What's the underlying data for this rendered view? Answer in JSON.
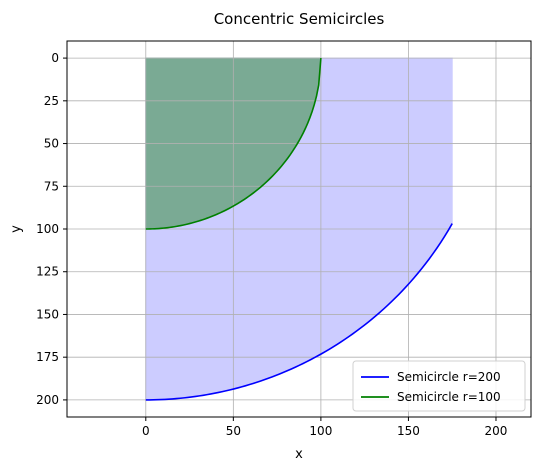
{
  "chart_data": {
    "type": "area",
    "title": "Concentric Semicircles",
    "xlabel": "x",
    "ylabel": "y",
    "xlim": [
      -45,
      220
    ],
    "ylim": [
      210,
      -10
    ],
    "y_inverted": true,
    "xticks": [
      0,
      50,
      100,
      150,
      200
    ],
    "yticks": [
      0,
      25,
      50,
      75,
      100,
      125,
      150,
      175,
      200
    ],
    "grid": true,
    "legend_position": "lower-right",
    "series": [
      {
        "name": "Semicircle r=200",
        "radius": 200,
        "x_range": [
          0,
          175
        ],
        "curve": "y = sqrt(200^2 - x^2)",
        "line_color": "#0000ff",
        "fill_color": "#ccccff",
        "fill_to": 0
      },
      {
        "name": "Semicircle r=100",
        "radius": 100,
        "x_range": [
          0,
          100
        ],
        "curve": "y = sqrt(100^2 - x^2)",
        "line_color": "#008000",
        "fill_color": "#7aaa94",
        "fill_to": 0
      }
    ]
  }
}
